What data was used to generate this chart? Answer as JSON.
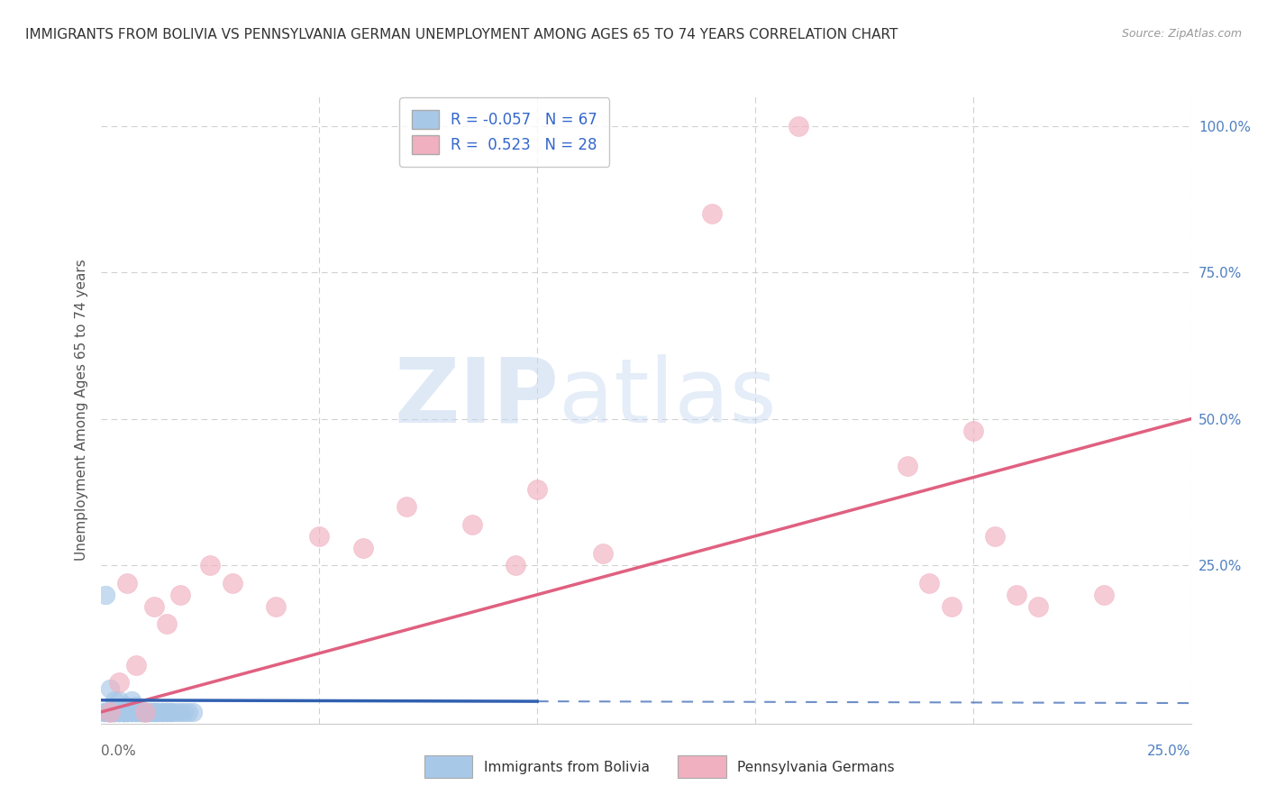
{
  "title": "IMMIGRANTS FROM BOLIVIA VS PENNSYLVANIA GERMAN UNEMPLOYMENT AMONG AGES 65 TO 74 YEARS CORRELATION CHART",
  "source": "Source: ZipAtlas.com",
  "ylabel": "Unemployment Among Ages 65 to 74 years",
  "ytick_labels_right": [
    "100.0%",
    "75.0%",
    "50.0%",
    "25.0%"
  ],
  "ytick_values": [
    1.0,
    0.75,
    0.5,
    0.25
  ],
  "xlim": [
    0.0,
    0.25
  ],
  "ylim": [
    -0.02,
    1.05
  ],
  "series1_label": "Immigrants from Bolivia",
  "series1_R": -0.057,
  "series1_N": 67,
  "series1_color": "#a8c8e8",
  "series1_edge_color": "#7aaad0",
  "series1_line_color": "#3060b0",
  "series2_label": "Pennsylvania Germans",
  "series2_R": 0.523,
  "series2_N": 28,
  "series2_color": "#f0b0c0",
  "series2_edge_color": "#e080a0",
  "series2_line_color": "#e06080",
  "legend_R_color": "#3366cc",
  "watermark_zip": "ZIP",
  "watermark_atlas": "atlas",
  "background_color": "#ffffff",
  "grid_color": "#cccccc",
  "title_color": "#333333",
  "source_color": "#999999",
  "axis_label_color": "#555555",
  "right_tick_color": "#5080c0",
  "bolivia_x": [
    0.0005,
    0.001,
    0.001,
    0.0015,
    0.002,
    0.002,
    0.002,
    0.003,
    0.003,
    0.003,
    0.003,
    0.003,
    0.004,
    0.004,
    0.004,
    0.004,
    0.005,
    0.005,
    0.005,
    0.005,
    0.005,
    0.005,
    0.006,
    0.006,
    0.006,
    0.006,
    0.007,
    0.007,
    0.007,
    0.008,
    0.008,
    0.008,
    0.009,
    0.009,
    0.009,
    0.009,
    0.01,
    0.01,
    0.01,
    0.01,
    0.01,
    0.011,
    0.011,
    0.011,
    0.012,
    0.012,
    0.012,
    0.013,
    0.013,
    0.014,
    0.014,
    0.015,
    0.015,
    0.016,
    0.016,
    0.017,
    0.018,
    0.019,
    0.02,
    0.021,
    0.001,
    0.002,
    0.003,
    0.004,
    0.006,
    0.007,
    0.008
  ],
  "bolivia_y": [
    0.0,
    0.0,
    0.0,
    0.0,
    0.0,
    0.0,
    0.0,
    0.0,
    0.0,
    0.0,
    0.0,
    0.0,
    0.0,
    0.0,
    0.0,
    0.0,
    0.0,
    0.0,
    0.0,
    0.0,
    0.0,
    0.0,
    0.0,
    0.0,
    0.0,
    0.0,
    0.0,
    0.0,
    0.0,
    0.0,
    0.0,
    0.0,
    0.0,
    0.0,
    0.0,
    0.0,
    0.0,
    0.0,
    0.0,
    0.0,
    0.0,
    0.0,
    0.0,
    0.0,
    0.0,
    0.0,
    0.0,
    0.0,
    0.0,
    0.0,
    0.0,
    0.0,
    0.0,
    0.0,
    0.0,
    0.0,
    0.0,
    0.0,
    0.0,
    0.0,
    0.2,
    0.04,
    0.02,
    0.02,
    0.01,
    0.02,
    0.01
  ],
  "pa_german_x": [
    0.002,
    0.004,
    0.006,
    0.008,
    0.01,
    0.012,
    0.015,
    0.018,
    0.025,
    0.03,
    0.04,
    0.05,
    0.06,
    0.07,
    0.085,
    0.095,
    0.1,
    0.115,
    0.14,
    0.16,
    0.185,
    0.19,
    0.195,
    0.2,
    0.205,
    0.21,
    0.215,
    0.23
  ],
  "pa_german_y": [
    0.0,
    0.05,
    0.22,
    0.08,
    0.0,
    0.18,
    0.15,
    0.2,
    0.25,
    0.22,
    0.18,
    0.3,
    0.28,
    0.35,
    0.32,
    0.25,
    0.38,
    0.27,
    0.85,
    1.0,
    0.42,
    0.22,
    0.18,
    0.48,
    0.3,
    0.2,
    0.18,
    0.2
  ]
}
